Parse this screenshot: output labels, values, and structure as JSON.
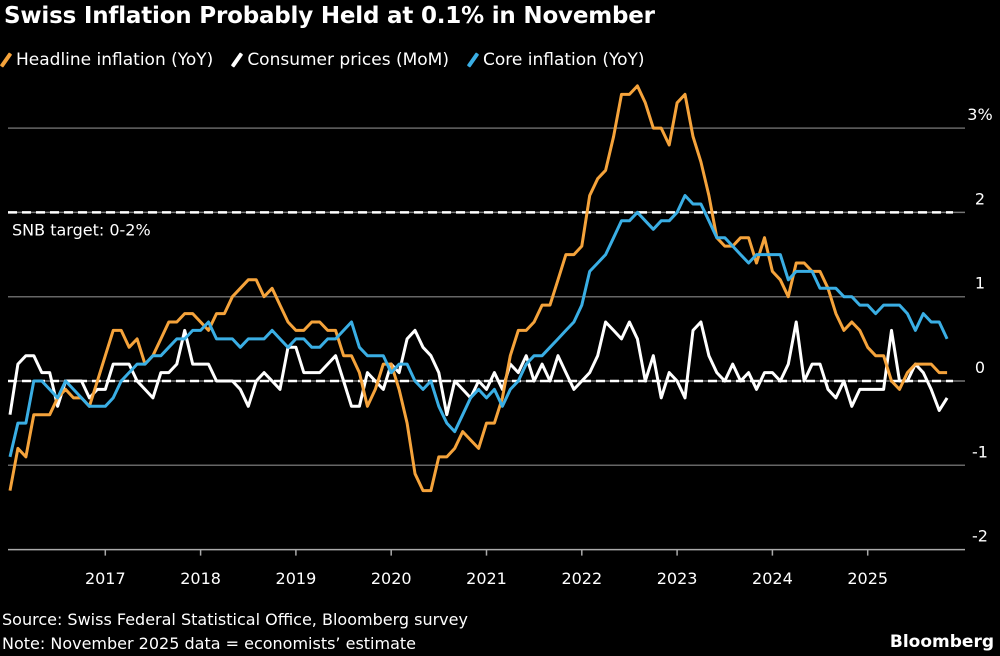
{
  "title": "Swiss Inflation Probably Held at 0.1% in November",
  "source": "Source: Swiss Federal Statistical Office, Bloomberg survey",
  "note": "Note: November 2025 data = economists’ estimate",
  "logo": "Bloomberg",
  "chart_data": {
    "type": "line",
    "x_start": "2016-01",
    "x_frequency": "monthly",
    "x_end": "2025-11",
    "xticks": [
      "2017",
      "2018",
      "2019",
      "2020",
      "2021",
      "2022",
      "2023",
      "2024",
      "2025"
    ],
    "yticks": [
      {
        "v": 3,
        "label": "3%"
      },
      {
        "v": 2,
        "label": "2"
      },
      {
        "v": 1,
        "label": "1"
      },
      {
        "v": 0,
        "label": "0"
      },
      {
        "v": -1,
        "label": "-1"
      },
      {
        "v": -2,
        "label": "-2"
      }
    ],
    "ylim": [
      -2,
      3.5
    ],
    "annotation": "SNB target: 0-2%",
    "reference_lines": [
      0,
      2
    ],
    "series": [
      {
        "name": "Headline inflation (YoY)",
        "color": "#f5a33b",
        "values": [
          -1.3,
          -0.8,
          -0.9,
          -0.4,
          -0.4,
          -0.4,
          -0.2,
          -0.1,
          -0.2,
          -0.2,
          -0.3,
          0.0,
          0.3,
          0.6,
          0.6,
          0.4,
          0.5,
          0.2,
          0.3,
          0.5,
          0.7,
          0.7,
          0.8,
          0.8,
          0.7,
          0.6,
          0.8,
          0.8,
          1.0,
          1.1,
          1.2,
          1.2,
          1.0,
          1.1,
          0.9,
          0.7,
          0.6,
          0.6,
          0.7,
          0.7,
          0.6,
          0.6,
          0.3,
          0.3,
          0.1,
          -0.3,
          -0.1,
          0.2,
          0.2,
          -0.1,
          -0.5,
          -1.1,
          -1.3,
          -1.3,
          -0.9,
          -0.9,
          -0.8,
          -0.6,
          -0.7,
          -0.8,
          -0.5,
          -0.5,
          -0.2,
          0.3,
          0.6,
          0.6,
          0.7,
          0.9,
          0.9,
          1.2,
          1.5,
          1.5,
          1.6,
          2.2,
          2.4,
          2.5,
          2.9,
          3.4,
          3.4,
          3.5,
          3.3,
          3.0,
          3.0,
          2.8,
          3.3,
          3.4,
          2.9,
          2.6,
          2.2,
          1.7,
          1.6,
          1.6,
          1.7,
          1.7,
          1.4,
          1.7,
          1.3,
          1.2,
          1.0,
          1.4,
          1.4,
          1.3,
          1.3,
          1.1,
          0.8,
          0.6,
          0.7,
          0.6,
          0.4,
          0.3,
          0.3,
          0.0,
          -0.1,
          0.1,
          0.2,
          0.2,
          0.2,
          0.1,
          0.1
        ]
      },
      {
        "name": "Consumer prices (MoM)",
        "color": "#ffffff",
        "values": [
          -0.4,
          0.2,
          0.3,
          0.3,
          0.1,
          0.1,
          -0.3,
          0.0,
          0.0,
          0.0,
          -0.2,
          -0.1,
          -0.1,
          0.2,
          0.2,
          0.2,
          0.0,
          -0.1,
          -0.2,
          0.1,
          0.1,
          0.2,
          0.6,
          0.2,
          0.2,
          0.2,
          0.0,
          0.0,
          0.0,
          -0.1,
          -0.3,
          0.0,
          0.1,
          0.0,
          -0.1,
          0.4,
          0.4,
          0.1,
          0.1,
          0.1,
          0.2,
          0.3,
          0.0,
          -0.3,
          -0.3,
          0.1,
          0.0,
          -0.1,
          0.2,
          0.1,
          0.5,
          0.6,
          0.4,
          0.3,
          0.1,
          -0.4,
          0.0,
          -0.1,
          -0.2,
          0.0,
          -0.1,
          0.1,
          -0.1,
          0.2,
          0.1,
          0.3,
          0.0,
          0.2,
          0.0,
          0.3,
          0.1,
          -0.1,
          0.0,
          0.1,
          0.3,
          0.7,
          0.6,
          0.5,
          0.7,
          0.5,
          0.0,
          0.3,
          -0.2,
          0.1,
          0.0,
          -0.2,
          0.6,
          0.7,
          0.3,
          0.1,
          0.0,
          0.2,
          0.0,
          0.1,
          -0.1,
          0.1,
          0.1,
          0.0,
          0.2,
          0.7,
          0.0,
          0.2,
          0.2,
          -0.1,
          -0.2,
          0.0,
          -0.3,
          -0.1,
          -0.1,
          -0.1,
          -0.1,
          0.6,
          0.0,
          0.0,
          0.2,
          0.1,
          -0.1,
          -0.35,
          -0.2
        ]
      },
      {
        "name": "Core inflation (YoY)",
        "color": "#3aaee4",
        "values": [
          -0.9,
          -0.5,
          -0.5,
          0.0,
          0.0,
          -0.1,
          -0.2,
          0.0,
          -0.1,
          -0.2,
          -0.3,
          -0.3,
          -0.3,
          -0.2,
          0.0,
          0.1,
          0.2,
          0.2,
          0.3,
          0.3,
          0.4,
          0.5,
          0.5,
          0.6,
          0.6,
          0.7,
          0.5,
          0.5,
          0.5,
          0.4,
          0.5,
          0.5,
          0.5,
          0.6,
          0.5,
          0.4,
          0.5,
          0.5,
          0.4,
          0.4,
          0.5,
          0.5,
          0.6,
          0.7,
          0.4,
          0.3,
          0.3,
          0.3,
          0.1,
          0.2,
          0.2,
          0.0,
          -0.1,
          0.0,
          -0.3,
          -0.5,
          -0.6,
          -0.4,
          -0.2,
          -0.1,
          -0.2,
          -0.1,
          -0.3,
          -0.1,
          0.0,
          0.2,
          0.3,
          0.3,
          0.4,
          0.5,
          0.6,
          0.7,
          0.9,
          1.3,
          1.4,
          1.5,
          1.7,
          1.9,
          1.9,
          2.0,
          1.9,
          1.8,
          1.9,
          1.9,
          2.0,
          2.2,
          2.1,
          2.1,
          1.9,
          1.7,
          1.7,
          1.6,
          1.5,
          1.4,
          1.5,
          1.5,
          1.5,
          1.5,
          1.2,
          1.3,
          1.3,
          1.3,
          1.1,
          1.1,
          1.1,
          1.0,
          1.0,
          0.9,
          0.9,
          0.8,
          0.9,
          0.9,
          0.9,
          0.8,
          0.6,
          0.8,
          0.7,
          0.7,
          0.5
        ]
      }
    ]
  }
}
